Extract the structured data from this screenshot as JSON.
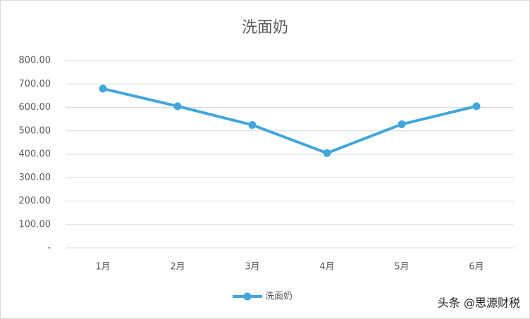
{
  "chart_data": {
    "type": "line",
    "title": "洗面奶",
    "categories": [
      "1月",
      "2月",
      "3月",
      "4月",
      "5月",
      "6月"
    ],
    "series": [
      {
        "name": "洗面奶",
        "color": "#41a7db",
        "values": [
          680,
          605,
          525,
          405,
          528,
          605
        ]
      }
    ],
    "ylim": [
      0,
      800
    ],
    "yticks": [
      {
        "value": 0,
        "label": "-"
      },
      {
        "value": 100,
        "label": "100.00"
      },
      {
        "value": 200,
        "label": "200.00"
      },
      {
        "value": 300,
        "label": "300.00"
      },
      {
        "value": 400,
        "label": "400.00"
      },
      {
        "value": 500,
        "label": "500.00"
      },
      {
        "value": 600,
        "label": "600.00"
      },
      {
        "value": 700,
        "label": "700.00"
      },
      {
        "value": 800,
        "label": "800.00"
      }
    ],
    "grid": true,
    "legend": "bottom",
    "watermark": "头条 @思源财税"
  }
}
